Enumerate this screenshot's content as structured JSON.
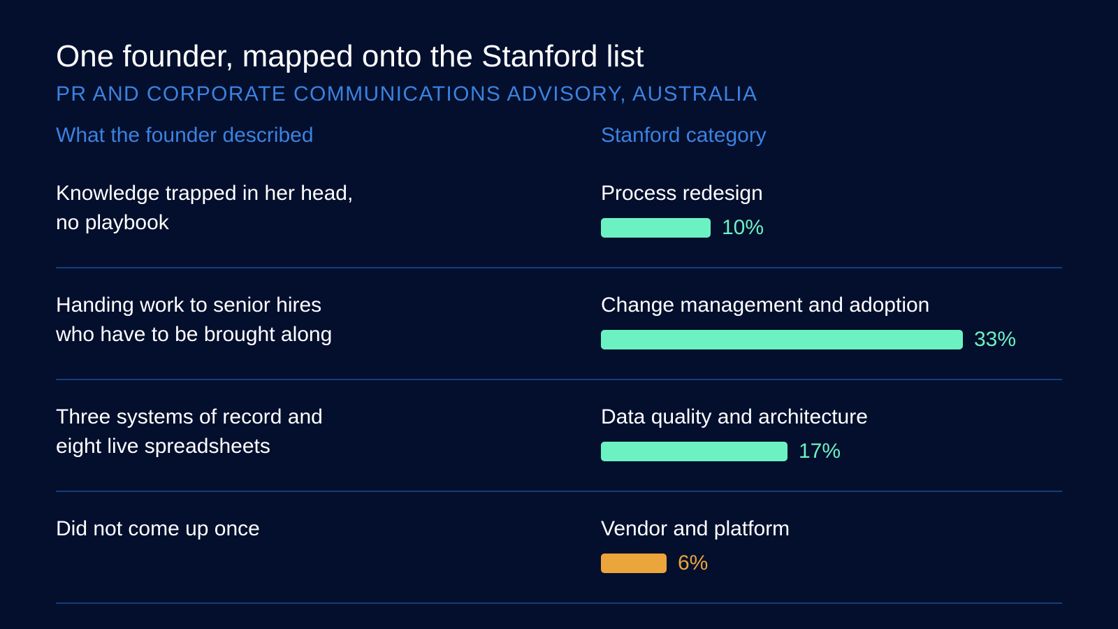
{
  "title": "One founder, mapped onto the Stanford list",
  "subtitle": "PR AND CORPORATE COMMUNICATIONS ADVISORY, AUSTRALIA",
  "columns": {
    "left": "What the founder described",
    "right": "Stanford category"
  },
  "colors": {
    "background": "#030f2d",
    "accent_blue": "#3c82e0",
    "bar_green": "#6cf2c2",
    "bar_orange": "#eba53b",
    "divider": "#173d7a"
  },
  "chart_data": {
    "type": "bar",
    "orientation": "horizontal",
    "title": "One founder, mapped onto the Stanford list",
    "subtitle": "PR AND CORPORATE COMMUNICATIONS ADVISORY, AUSTRALIA",
    "xlim": [
      0,
      33
    ],
    "rows": [
      {
        "description": "Knowledge trapped in her head,\nno playbook",
        "category": "Process redesign",
        "value": 10,
        "label": "10%",
        "color": "#6cf2c2"
      },
      {
        "description": "Handing work to senior hires\nwho have to be brought along",
        "category": "Change management and adoption",
        "value": 33,
        "label": "33%",
        "color": "#6cf2c2"
      },
      {
        "description": "Three systems of record and\neight live spreadsheets",
        "category": "Data quality and architecture",
        "value": 17,
        "label": "17%",
        "color": "#6cf2c2"
      },
      {
        "description": "Did not come up once",
        "category": "Vendor and platform",
        "value": 6,
        "label": "6%",
        "color": "#eba53b"
      }
    ]
  }
}
